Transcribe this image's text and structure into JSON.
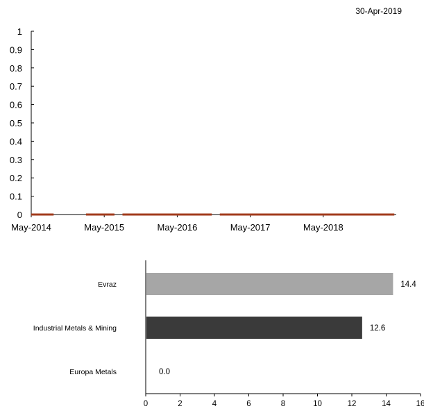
{
  "date": "30-Apr-2019",
  "colors": {
    "line_series": "#A23B1C",
    "axis": "#000000"
  },
  "chart_data": [
    {
      "type": "line",
      "ylim": [
        0,
        1
      ],
      "yticks": [
        "0",
        "0.1",
        "0.2",
        "0.3",
        "0.4",
        "0.5",
        "0.6",
        "0.7",
        "0.8",
        "0.9",
        "1"
      ],
      "xticks": [
        "May-2014",
        "May-2015",
        "May-2016",
        "May-2017",
        "May-2018"
      ],
      "xlim": [
        "2014-05",
        "2019-04"
      ],
      "series": [
        {
          "color": "#A23B1C",
          "segments": [
            [
              "2014-05",
              "2014-08"
            ],
            [
              "2015-02",
              "2015-06"
            ],
            [
              "2015-08",
              "2016-10"
            ],
            [
              "2016-12",
              "2019-04"
            ]
          ],
          "values": [
            0,
            0,
            0,
            0,
            0
          ]
        }
      ],
      "xlabel": "",
      "ylabel": "",
      "title": "",
      "grid": false
    },
    {
      "type": "bar",
      "orientation": "horizontal",
      "categories": [
        "Evraz",
        "Industrial Metals & Mining",
        "Europa Metals"
      ],
      "values": [
        14.4,
        12.6,
        0.0
      ],
      "labels": [
        "14.4",
        "12.6",
        "0.0"
      ],
      "colors": [
        "#A6A6A6",
        "#3A3A3A",
        "#808080"
      ],
      "xlim": [
        0,
        16
      ],
      "xticks": [
        "0",
        "2",
        "4",
        "6",
        "8",
        "10",
        "12",
        "14",
        "16"
      ],
      "xlabel": "",
      "ylabel": "",
      "title": "",
      "grid": false
    }
  ]
}
